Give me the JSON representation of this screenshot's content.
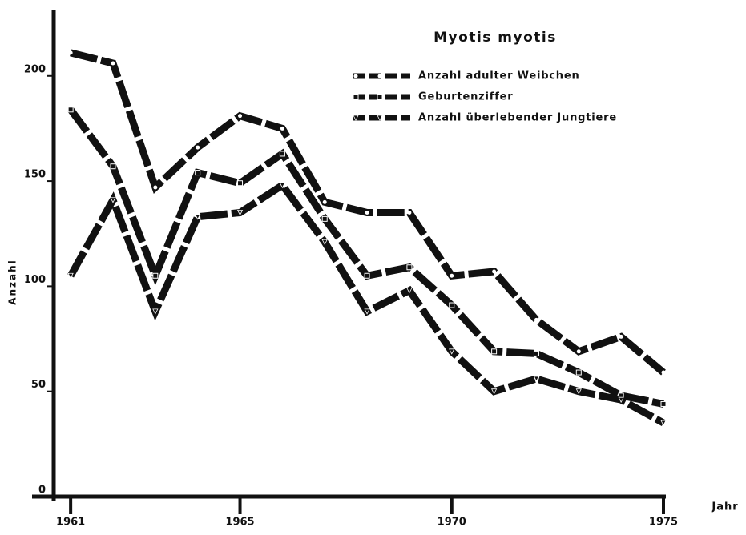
{
  "chart_data": {
    "type": "line",
    "title": "Myotis myotis",
    "xlabel": "Jahr",
    "ylabel": "Anzahl",
    "x": [
      1961,
      1962,
      1963,
      1964,
      1965,
      1966,
      1967,
      1968,
      1969,
      1970,
      1971,
      1972,
      1973,
      1974,
      1975
    ],
    "series": [
      {
        "name": "Anzahl adulter Weibchen",
        "color": "#111111",
        "marker": "circle",
        "values": [
          211,
          206,
          147,
          166,
          181,
          175,
          140,
          135,
          135,
          105,
          107,
          84,
          69,
          76,
          59
        ]
      },
      {
        "name": "Geburtenziffer",
        "color": "#111111",
        "marker": "square",
        "values": [
          184,
          157,
          105,
          154,
          149,
          163,
          132,
          105,
          109,
          91,
          69,
          68,
          59,
          48,
          44
        ]
      },
      {
        "name": "Anzahl überlebender Jungtiere",
        "color": "#111111",
        "marker": "triangle",
        "values": [
          105,
          141,
          88,
          133,
          135,
          148,
          121,
          88,
          98,
          69,
          50,
          56,
          50,
          46,
          35
        ]
      }
    ],
    "xlim": [
      1960.6,
      1975
    ],
    "xticks": [
      1961,
      1965,
      1970,
      1975
    ],
    "ylim": [
      0,
      230
    ],
    "yticks": [
      0,
      50,
      100,
      150,
      200
    ],
    "legend": "top-right"
  }
}
